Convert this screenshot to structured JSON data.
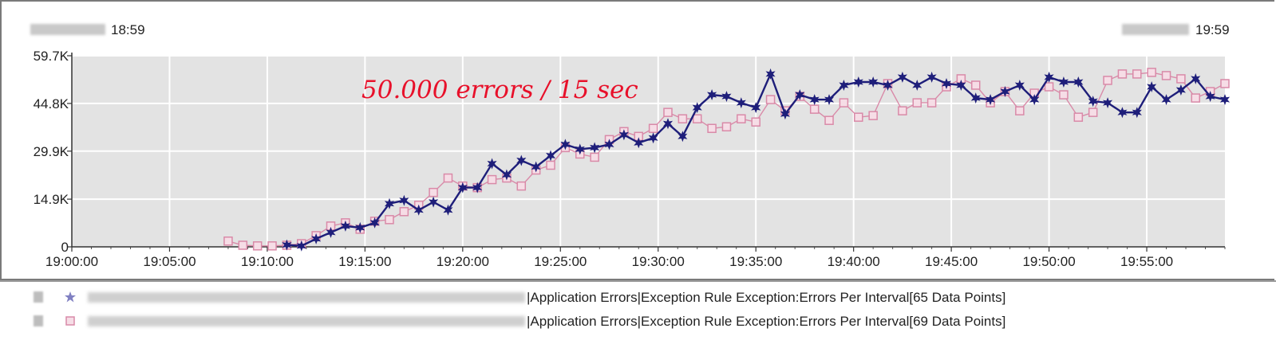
{
  "header": {
    "start_time": "18:59",
    "end_time": "19:59"
  },
  "legend": {
    "entries": [
      {
        "text": "|Application Errors|Exception Rule Exception:Errors Per Interval[65 Data Points]",
        "marker": "star",
        "color": "#1e1e7a"
      },
      {
        "text": "|Application Errors|Exception Rule Exception:Errors Per Interval[69 Data Points]",
        "marker": "square",
        "color": "#d98aa8"
      }
    ]
  },
  "chart_data": {
    "type": "line",
    "x_unit": "minutes after 19:00:00",
    "xlim": [
      0,
      59
    ],
    "ylim": [
      0,
      59.7
    ],
    "y_ticks": [
      0,
      14.9,
      29.9,
      44.8,
      59.7
    ],
    "y_tick_labels": [
      "0",
      "14.9K",
      "29.9K",
      "44.8K",
      "59.7K"
    ],
    "x_ticks": [
      0,
      5,
      10,
      15,
      20,
      25,
      30,
      35,
      40,
      45,
      50,
      55
    ],
    "x_tick_labels": [
      "19:00:00",
      "19:05:00",
      "19:10:00",
      "19:15:00",
      "19:20:00",
      "19:25:00",
      "19:30:00",
      "19:35:00",
      "19:40:00",
      "19:45:00",
      "19:50:00",
      "19:55:00"
    ],
    "grid": true,
    "annotation": "50.000 errors / 15 sec",
    "series": [
      {
        "color": "#1e1e7a",
        "marker": "star",
        "x": [
          11,
          11.75,
          12.5,
          13.25,
          14,
          14.75,
          15.5,
          16.25,
          17,
          17.75,
          18.5,
          19.25,
          20,
          20.75,
          21.5,
          22.25,
          23,
          23.75,
          24.5,
          25.25,
          26,
          26.75,
          27.5,
          28.25,
          29,
          29.75,
          30.5,
          31.25,
          32,
          32.75,
          33.5,
          34.25,
          35,
          35.75,
          36.5,
          37.25,
          38,
          38.75,
          39.5,
          40.25,
          41,
          41.75,
          42.5,
          43.25,
          44,
          44.75,
          45.5,
          46.25,
          47,
          47.75,
          48.5,
          49.25,
          50,
          50.75,
          51.5,
          52.25,
          53,
          53.75,
          54.5,
          55.25,
          56,
          56.75,
          57.5,
          58.25,
          59
        ],
        "values": [
          0.6,
          0.3,
          2.5,
          4.5,
          6.5,
          6,
          7.5,
          13.5,
          14.5,
          11.5,
          14,
          11.5,
          18.5,
          18.5,
          26,
          22.5,
          27,
          25,
          28.5,
          32,
          30.5,
          31,
          32,
          35,
          32.5,
          34,
          38.5,
          34.5,
          43.5,
          47.5,
          47,
          45,
          43.5,
          54,
          41.5,
          47.5,
          46,
          46,
          50.5,
          51.5,
          51.5,
          50.5,
          53,
          50.5,
          53,
          51,
          50.5,
          46.5,
          46,
          48.5,
          50.5,
          46,
          53,
          51.5,
          51.5,
          45.5,
          45,
          42,
          42,
          50,
          46,
          49,
          52.5,
          47,
          46
        ]
      },
      {
        "color": "#d98aa8",
        "marker": "square",
        "x": [
          8,
          8.75,
          9.5,
          10.25,
          11,
          11.75,
          12.5,
          13.25,
          14,
          14.75,
          15.5,
          16.25,
          17,
          17.75,
          18.5,
          19.25,
          20,
          20.75,
          21.5,
          22.25,
          23,
          23.75,
          24.5,
          25.25,
          26,
          26.75,
          27.5,
          28.25,
          29,
          29.75,
          30.5,
          31.25,
          32,
          32.75,
          33.5,
          34.25,
          35,
          35.75,
          36.5,
          37.25,
          38,
          38.75,
          39.5,
          40.25,
          41,
          41.75,
          42.5,
          43.25,
          44,
          44.75,
          45.5,
          46.25,
          47,
          47.75,
          48.5,
          49.25,
          50,
          50.75,
          51.5,
          52.25,
          53,
          53.75,
          54.5,
          55.25,
          56,
          56.75,
          57.5,
          58.25,
          59
        ],
        "values": [
          1.8,
          0.5,
          0.3,
          0.3,
          0.5,
          1,
          3.5,
          6.5,
          7.5,
          5.5,
          8,
          8.5,
          11,
          13,
          17,
          21.5,
          19,
          18.5,
          21,
          21.5,
          19,
          24,
          25.5,
          31,
          29,
          28,
          33.5,
          36,
          34.5,
          37,
          42,
          40,
          40,
          37,
          37.5,
          40,
          39,
          46,
          42.5,
          47,
          43,
          39.5,
          45,
          40.5,
          41,
          51,
          42.5,
          45,
          45,
          50,
          52.5,
          50.5,
          45,
          48.5,
          42.5,
          48,
          50,
          47.5,
          40.5,
          42,
          52,
          54,
          54,
          54.5,
          53.5,
          52.5,
          46.5,
          48.5,
          51
        ]
      }
    ]
  }
}
